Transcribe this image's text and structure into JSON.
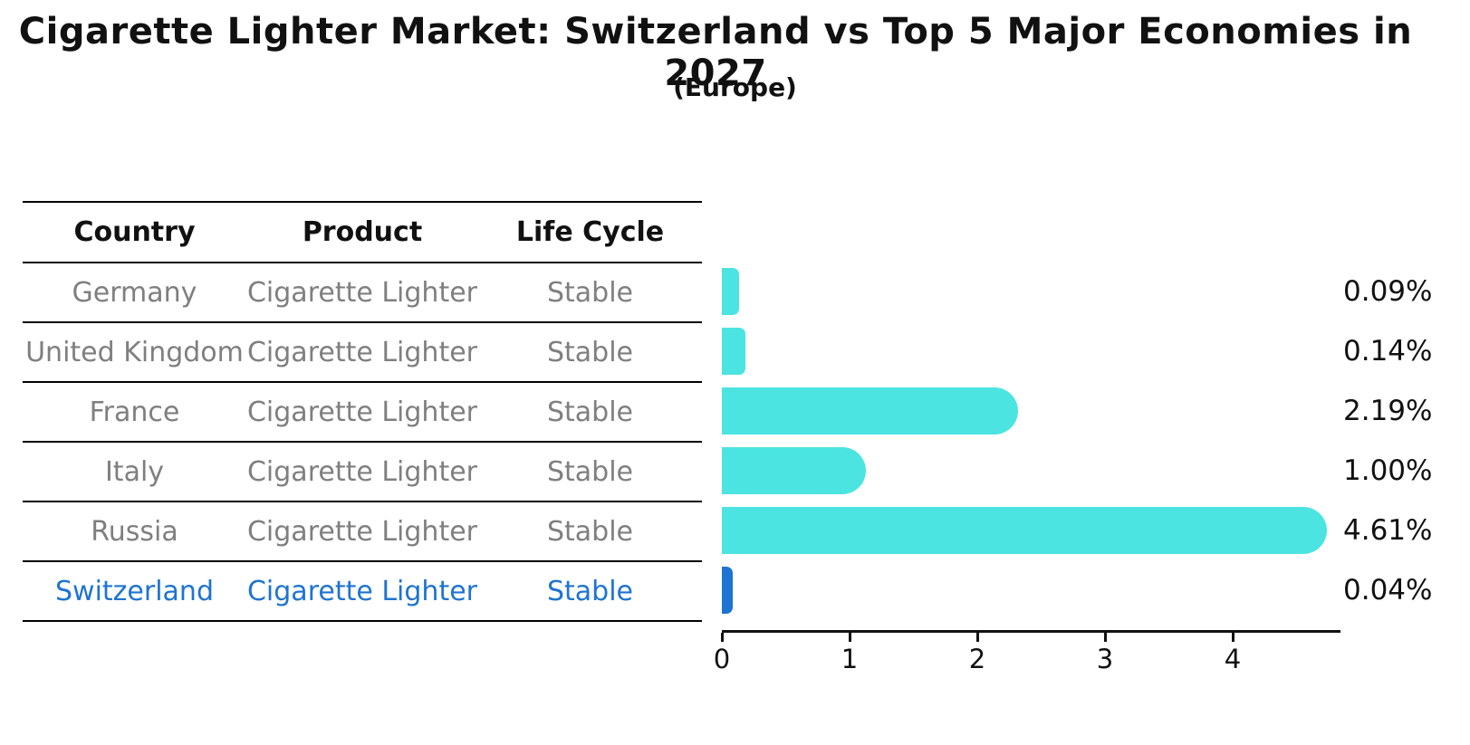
{
  "title": "Cigarette Lighter Market: Switzerland vs Top 5 Major Economies in 2027",
  "subtitle": "(Europe)",
  "table": {
    "headers": [
      "Country",
      "Product",
      "Life Cycle"
    ],
    "rows": [
      {
        "country": "Germany",
        "product": "Cigarette Lighter",
        "life_cycle": "Stable"
      },
      {
        "country": "United Kingdom",
        "product": "Cigarette Lighter",
        "life_cycle": "Stable"
      },
      {
        "country": "France",
        "product": "Cigarette Lighter",
        "life_cycle": "Stable"
      },
      {
        "country": "Italy",
        "product": "Cigarette Lighter",
        "life_cycle": "Stable"
      },
      {
        "country": "Russia",
        "product": "Cigarette Lighter",
        "life_cycle": "Stable"
      },
      {
        "country": "Switzerland",
        "product": "Cigarette Lighter",
        "life_cycle": "Stable"
      }
    ]
  },
  "chart_data": {
    "type": "bar",
    "orientation": "horizontal",
    "title": "Cigarette Lighter Market: Switzerland vs Top 5 Major Economies in 2027",
    "subtitle": "(Europe)",
    "categories": [
      "Germany",
      "United Kingdom",
      "France",
      "Italy",
      "Russia",
      "Switzerland"
    ],
    "values": [
      0.09,
      0.14,
      2.19,
      1.0,
      4.61,
      0.04
    ],
    "value_labels": [
      "0.09%",
      "0.14%",
      "2.19%",
      "1.00%",
      "4.61%",
      "0.04%"
    ],
    "x_ticks": [
      0,
      1,
      2,
      3,
      4
    ],
    "xlim": [
      0,
      4.85
    ],
    "grid": false,
    "bar_color": "#4be4e1",
    "highlight_color": "#1e74d1",
    "highlight_index": 5,
    "highlight_category": "Switzerland"
  }
}
